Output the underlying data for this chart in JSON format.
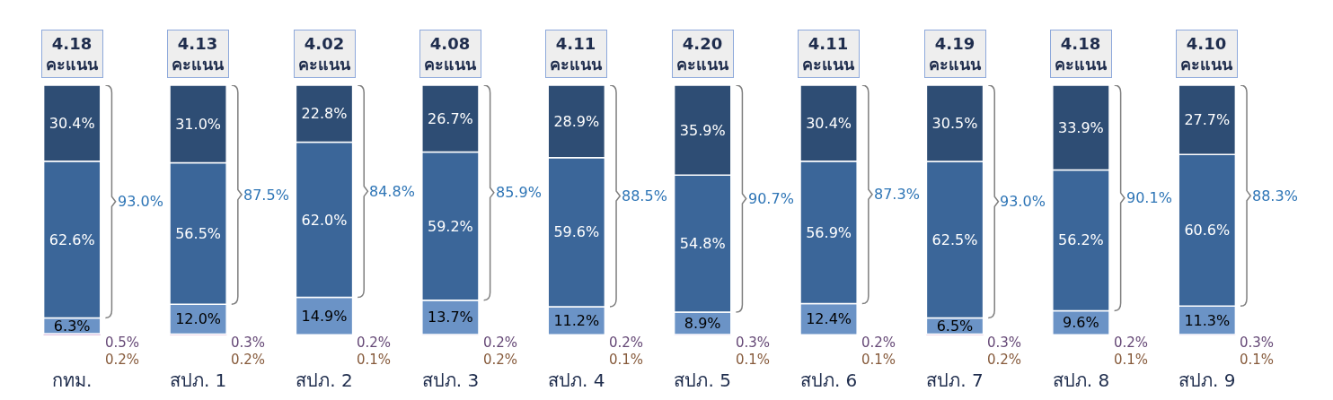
{
  "chart_data": {
    "type": "bar",
    "stacked": true,
    "categories": [
      "กทม.",
      "สปภ. 1",
      "สปภ. 2",
      "สปภ. 3",
      "สปภ. 4",
      "สปภ. 5",
      "สปภ. 6",
      "สปภ. 7",
      "สปภ. 8",
      "สปภ. 9"
    ],
    "series": [
      {
        "color": "#f4a46c",
        "values": [
          0.2,
          0.2,
          0.1,
          0.2,
          0.1,
          0.1,
          0.1,
          0.2,
          0.1,
          0.1
        ],
        "value_labels": [
          "0.2%",
          "0.2%",
          "0.1%",
          "0.2%",
          "0.1%",
          "0.1%",
          "0.1%",
          "0.2%",
          "0.1%",
          "0.1%"
        ]
      },
      {
        "color": "#b884d8",
        "values": [
          0.5,
          0.3,
          0.2,
          0.2,
          0.2,
          0.3,
          0.2,
          0.3,
          0.2,
          0.3
        ],
        "value_labels": [
          "0.5%",
          "0.3%",
          "0.2%",
          "0.2%",
          "0.2%",
          "0.3%",
          "0.2%",
          "0.3%",
          "0.2%",
          "0.3%"
        ]
      },
      {
        "color": "#6b93c6",
        "values": [
          6.3,
          12.0,
          14.9,
          13.7,
          11.2,
          8.9,
          12.4,
          6.5,
          9.6,
          11.3
        ],
        "value_labels": [
          "6.3%",
          "12.0%",
          "14.9%",
          "13.7%",
          "11.2%",
          "8.9%",
          "12.4%",
          "6.5%",
          "9.6%",
          "11.3%"
        ]
      },
      {
        "color": "#3b6699",
        "values": [
          62.6,
          56.5,
          62.0,
          59.2,
          59.6,
          54.8,
          56.9,
          62.5,
          56.2,
          60.6
        ],
        "value_labels": [
          "62.6%",
          "56.5%",
          "62.0%",
          "59.2%",
          "59.6%",
          "54.8%",
          "56.9%",
          "62.5%",
          "56.2%",
          "60.6%"
        ]
      },
      {
        "color": "#2e4d74",
        "values": [
          30.4,
          31.0,
          22.8,
          26.7,
          28.9,
          35.9,
          30.4,
          30.5,
          33.9,
          27.7
        ],
        "value_labels": [
          "30.4%",
          "31.0%",
          "22.8%",
          "26.7%",
          "28.9%",
          "35.9%",
          "30.4%",
          "30.5%",
          "33.9%",
          "27.7%"
        ]
      }
    ],
    "annotations": [
      "4.18\nคะแนน",
      "4.13\nคะแนน",
      "4.02\nคะแนน",
      "4.08\nคะแนน",
      "4.11\nคะแนน",
      "4.20\nคะแนน",
      "4.11\nคะแนน",
      "4.19\nคะแนน",
      "4.18\nคะแนน",
      "4.10\nคะแนน",
      "93.0%",
      "87.5%",
      "84.8%",
      "85.9%",
      "88.5%",
      "90.7%",
      "87.3%",
      "93.0%",
      "90.1%",
      "88.3%"
    ]
  }
}
